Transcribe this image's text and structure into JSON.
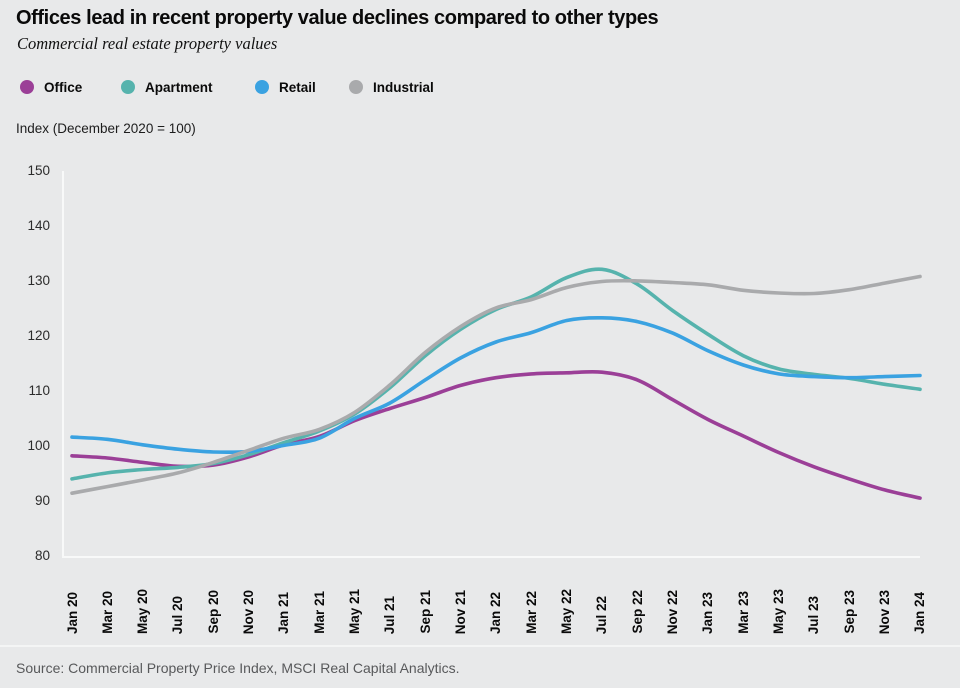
{
  "header": {
    "title": "Offices lead in recent property value declines compared to other types",
    "subtitle": "Commercial real estate property values",
    "unit_label": "Index (December 2020 = 100)"
  },
  "footer": {
    "source": "Source: Commercial Property Price Index, MSCI Real Capital Analytics."
  },
  "colors": {
    "background": "#e8e9ea",
    "axis_line": "#f8f9f9",
    "office": "#9b3f97",
    "apartment": "#56b3ad",
    "retail": "#3aa2e1",
    "industrial": "#a9aaac",
    "source_text": "#58595b"
  },
  "chart_data": {
    "type": "line",
    "title": "Offices lead in recent property value declines compared to other types",
    "subtitle": "Commercial real estate property values",
    "ylabel": "Index (December 2020 = 100)",
    "xlabel": "",
    "ylim": [
      80,
      150
    ],
    "yticks": [
      150,
      140,
      130,
      120,
      110,
      100,
      90,
      80
    ],
    "grid": false,
    "legend_position": "top",
    "categories": [
      "Jan 20",
      "Mar 20",
      "May 20",
      "Jul 20",
      "Sep 20",
      "Nov 20",
      "Jan 21",
      "Mar 21",
      "May 21",
      "Jul 21",
      "Sep 21",
      "Nov 21",
      "Jan 22",
      "Mar 22",
      "May 22",
      "Jul 22",
      "Sep 22",
      "Nov 22",
      "Jan 23",
      "Mar 23",
      "May 23",
      "Jul 23",
      "Sep 23",
      "Nov 23",
      "Jan 24"
    ],
    "series": [
      {
        "name": "Office",
        "color": "#9b3f97",
        "values": [
          98.4,
          98.0,
          97.2,
          96.5,
          96.7,
          98.2,
          100.4,
          101.9,
          104.8,
          107.0,
          109.0,
          111.2,
          112.6,
          113.3,
          113.5,
          113.6,
          112.2,
          108.6,
          105.0,
          102.0,
          99.0,
          96.4,
          94.2,
          92.2,
          90.7
        ]
      },
      {
        "name": "Apartment",
        "color": "#56b3ad",
        "values": [
          94.2,
          95.3,
          95.9,
          96.3,
          97.0,
          98.6,
          100.8,
          102.9,
          106.0,
          110.8,
          116.6,
          121.4,
          125.0,
          127.3,
          130.8,
          132.3,
          129.6,
          124.8,
          120.5,
          116.6,
          114.2,
          113.2,
          112.5,
          111.4,
          110.5
        ]
      },
      {
        "name": "Retail",
        "color": "#3aa2e1",
        "values": [
          101.8,
          101.4,
          100.4,
          99.6,
          99.1,
          99.2,
          100.3,
          101.6,
          105.2,
          108.0,
          112.2,
          116.2,
          119.1,
          120.8,
          123.0,
          123.5,
          122.8,
          120.7,
          117.5,
          114.9,
          113.3,
          112.8,
          112.6,
          112.8,
          113.0
        ]
      },
      {
        "name": "Industrial",
        "color": "#a9aaac",
        "values": [
          91.6,
          92.8,
          94.0,
          95.3,
          97.2,
          99.4,
          101.6,
          103.2,
          106.3,
          111.3,
          117.2,
          121.9,
          125.3,
          126.8,
          129.0,
          130.1,
          130.2,
          129.9,
          129.5,
          128.5,
          128.0,
          127.9,
          128.6,
          129.8,
          131.0
        ]
      }
    ]
  }
}
